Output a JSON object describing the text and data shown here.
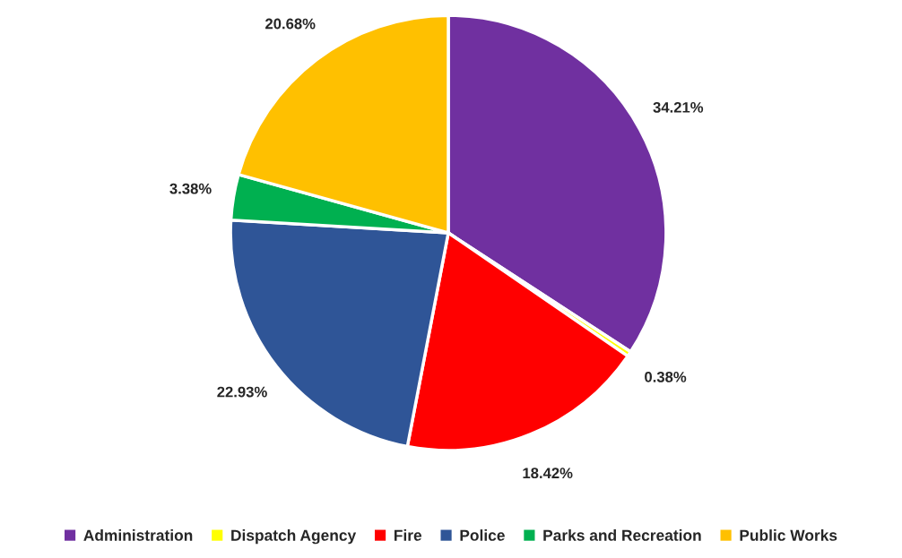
{
  "chart_data": {
    "type": "pie",
    "categories": [
      "Administration",
      "Dispatch Agency",
      "Fire",
      "Police",
      "Parks and Recreation",
      "Public Works"
    ],
    "values": [
      34.21,
      0.38,
      18.42,
      22.93,
      3.38,
      20.68
    ],
    "colors": [
      "#7030a0",
      "#ffff00",
      "#ff0000",
      "#2f5597",
      "#00b050",
      "#ffc000"
    ],
    "value_labels": [
      "34.21%",
      "0.38%",
      "18.42%",
      "22.93%",
      "3.38%",
      "20.68%"
    ],
    "legend": "bottom"
  }
}
